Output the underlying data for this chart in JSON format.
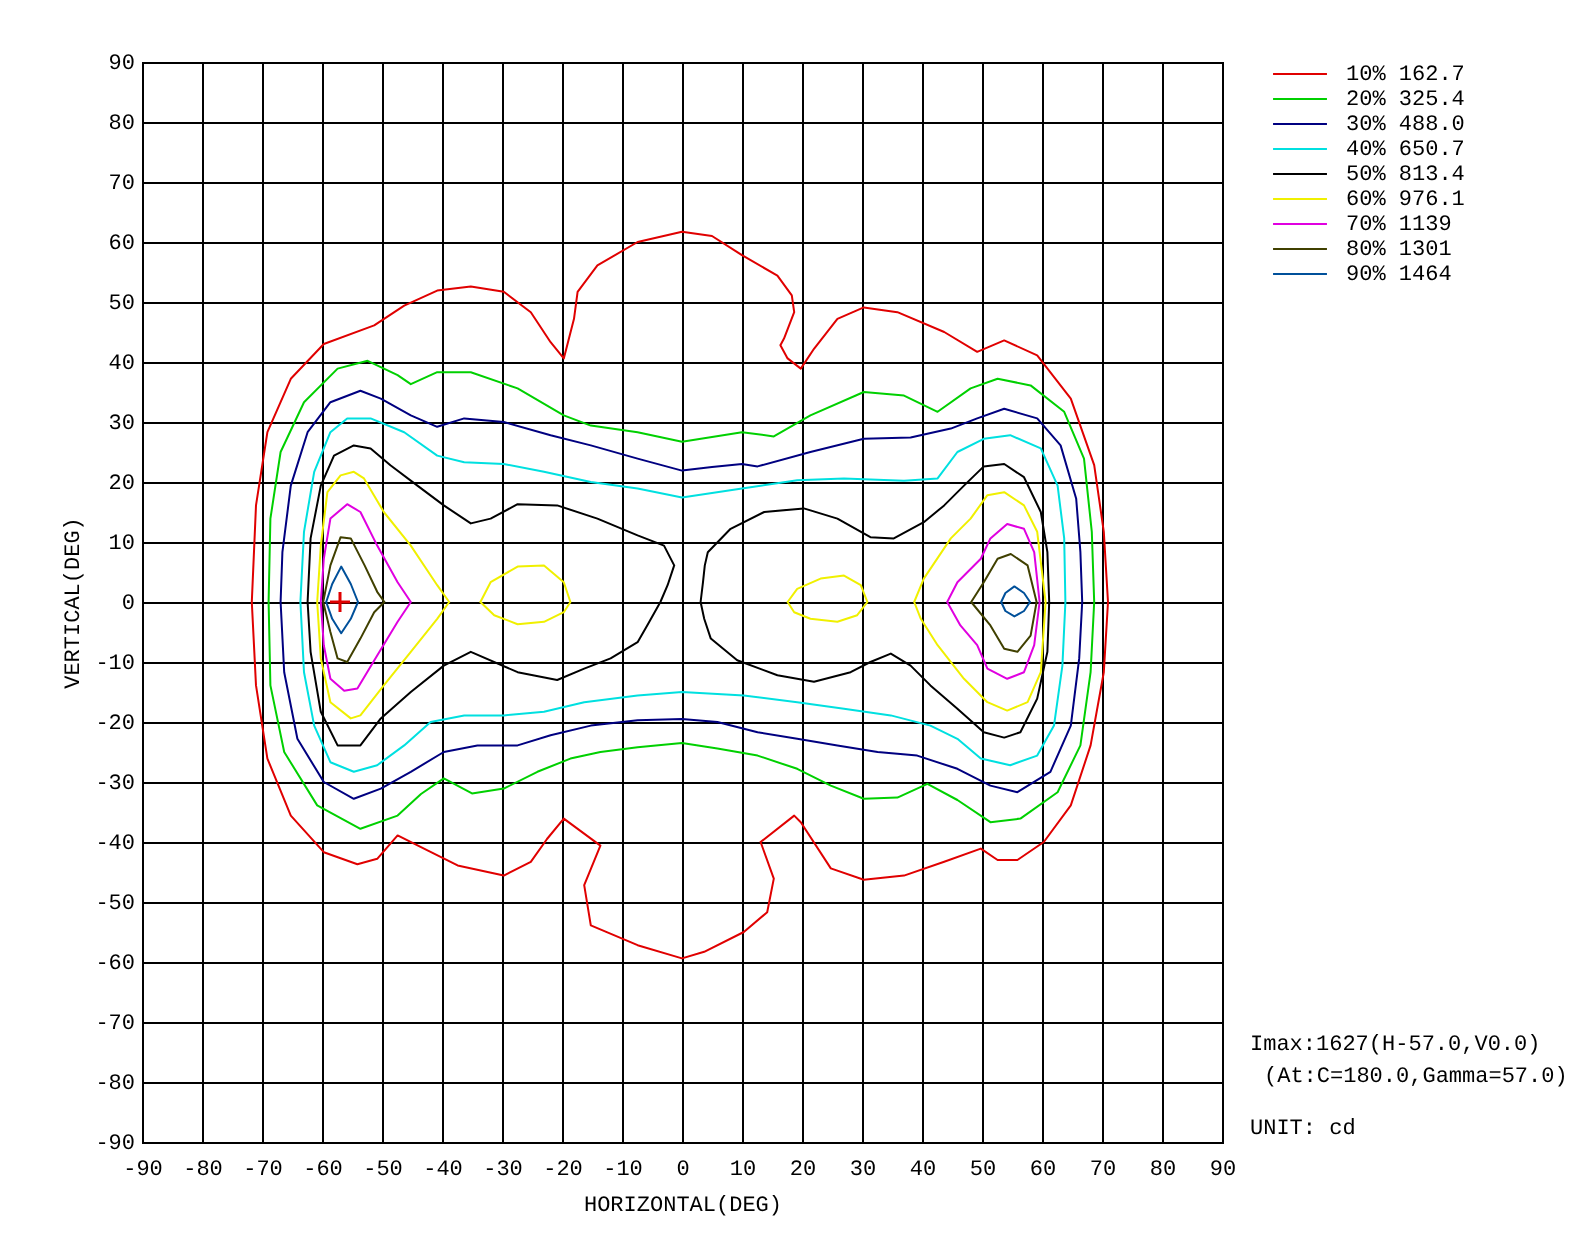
{
  "chart_data": {
    "type": "line",
    "xlabel": "HORIZONTAL(DEG)",
    "ylabel": "VERTICAL(DEG)",
    "xlim": [
      -90,
      90
    ],
    "ylim": [
      -90,
      90
    ],
    "xticks": [
      -90,
      -80,
      -70,
      -60,
      -50,
      -40,
      -30,
      -20,
      -10,
      0,
      10,
      20,
      30,
      40,
      50,
      60,
      70,
      80,
      90
    ],
    "yticks": [
      -90,
      -80,
      -70,
      -60,
      -50,
      -40,
      -30,
      -20,
      -10,
      0,
      10,
      20,
      30,
      40,
      50,
      60,
      70,
      80,
      90
    ],
    "grid": true,
    "legend": "top right",
    "annotations": [
      "Imax:1627(H-57.0,V0.0)",
      "(At:C=180.0,Gamma=57.0)",
      "UNIT: cd"
    ],
    "series": [
      {
        "name": "10% 162.7",
        "color": "#e00000",
        "x": [
          -71.7,
          -71,
          -69.1,
          -65.2,
          -59.7,
          -51.3,
          -46.3,
          -40.8,
          -35.2,
          -29.7,
          -25.2,
          -21.9,
          -19.7,
          -18,
          -17.4,
          -14.1,
          -7.4,
          0,
          5,
          10,
          15.9,
          18.3,
          18.7,
          null,
          16.4,
          17,
          18.7,
          null,
          16.4,
          17.6,
          19.8,
          22,
          25.9,
          30.3,
          35.9,
          43.7,
          49.2,
          53.7,
          59.2,
          64.8,
          68.7,
          70.3,
          71,
          null,
          -71.7,
          -71,
          -69.1,
          -65.2,
          -59.7,
          -54.1,
          -50.8,
          -47.4,
          -43,
          -37.4,
          -29.7,
          -25.2,
          -22.5,
          -19.7,
          -13.6,
          null,
          -16.3,
          -13.6,
          null,
          -16.3,
          -15.2,
          -7.4,
          0,
          3.7,
          10.3,
          14.2,
          15.3,
          null,
          13.1,
          15.3,
          null,
          13.1,
          18.7,
          19.8,
          24.8,
          30.3,
          37,
          43.7,
          49.8,
          52.6,
          55.9,
          60.3,
          64.8,
          68.1,
          70.3,
          71
        ],
        "values": [
          0,
          16.1,
          28.3,
          37.2,
          43,
          46.1,
          49.4,
          51.9,
          52.6,
          51.7,
          48.3,
          43.3,
          40.6,
          47.2,
          51.7,
          56.1,
          60,
          61.7,
          61,
          57.8,
          54.4,
          51.1,
          48.3,
          null,
          42.8,
          43.9,
          48.3,
          null,
          42.8,
          40.6,
          38.9,
          42.2,
          47.2,
          49.1,
          48.3,
          45,
          41.7,
          43.6,
          41.1,
          33.9,
          22.8,
          11.7,
          0,
          null,
          0,
          -13.9,
          -26.1,
          -35.6,
          -41.7,
          -43.7,
          -42.8,
          -38.9,
          -41.1,
          -43.9,
          -45.6,
          -43.3,
          -39.5,
          -36.1,
          -40.6,
          null,
          -47.2,
          -40.6,
          null,
          -47.2,
          -53.9,
          -57.2,
          -59.4,
          -58.3,
          -55,
          -51.7,
          -46.1,
          null,
          -40,
          -46.1,
          null,
          -40,
          -35.6,
          -36.7,
          -44.4,
          -46.3,
          -45.6,
          -43.3,
          -41.1,
          -43,
          -43,
          -40,
          -33.9,
          -23.9,
          -11.7,
          0
        ]
      },
      {
        "name": "20% 325.4",
        "color": "#00d000",
        "x": [
          -68.9,
          -68.6,
          -66.9,
          -63,
          -57.4,
          -52.4,
          -47.4,
          -45.2,
          -40.8,
          -35.2,
          -27.4,
          -19.7,
          -15.2,
          -7.4,
          0,
          5,
          10,
          15.3,
          21.4,
          30.3,
          37,
          42.6,
          48.1,
          52.6,
          58.1,
          63.7,
          67,
          68.3,
          68.7,
          null,
          -68.9,
          -68.6,
          -66.3,
          -60.8,
          -53.6,
          -47.4,
          -43.5,
          -39.7,
          -35,
          -29.7,
          -24.1,
          -18.6,
          -13.6,
          -7.4,
          0,
          5.9,
          12.6,
          19.2,
          24.8,
          30.3,
          35.9,
          40.9,
          45.9,
          51.4,
          56.4,
          62.6,
          66.4,
          68.1,
          68.7
        ],
        "values": [
          0,
          13.9,
          25,
          33.3,
          38.9,
          40.2,
          37.8,
          36.3,
          38.3,
          38.3,
          35.6,
          31.1,
          29.4,
          28.3,
          26.7,
          27.5,
          28.3,
          27.6,
          31.1,
          35,
          34.4,
          31.7,
          35.6,
          37.2,
          36.1,
          31.7,
          23.9,
          11.7,
          0,
          null,
          0,
          -13.9,
          -25,
          -33.9,
          -37.8,
          -35.6,
          -32,
          -29.4,
          -31.9,
          -31.1,
          -28.3,
          -26.1,
          -25,
          -24.2,
          -23.5,
          -24.4,
          -25.6,
          -27.8,
          -30.6,
          -32.8,
          -32.6,
          -30.3,
          -33,
          -36.7,
          -36.1,
          -31.7,
          -23.9,
          -11.7,
          0
        ]
      },
      {
        "name": "30% 488.0",
        "color": "#000080",
        "x": [
          -66.9,
          -66.6,
          -65.2,
          -62.4,
          -58.6,
          -53.6,
          -50.2,
          -45.2,
          -40.8,
          -36.3,
          -29.7,
          -21.9,
          -15.2,
          -7.4,
          0,
          5,
          10,
          12.6,
          21.4,
          30.3,
          38.1,
          44.8,
          49.2,
          53.7,
          59.2,
          63.1,
          65.7,
          66.4,
          66.7,
          null,
          -66.9,
          -66.3,
          -64.1,
          -59.7,
          -54.7,
          -50.2,
          -45.2,
          -39.7,
          -34.1,
          -27.4,
          -21.9,
          -15.2,
          -7.4,
          0,
          5.9,
          12.6,
          19.2,
          25.9,
          32.6,
          39.2,
          45.9,
          51.4,
          55.9,
          61.4,
          64.8,
          66.2,
          66.7
        ],
        "values": [
          0,
          8.3,
          19.4,
          28.3,
          33.3,
          35.2,
          33.9,
          31.1,
          29.2,
          30.6,
          30,
          27.8,
          26.1,
          23.9,
          21.9,
          22.5,
          23,
          22.6,
          25,
          27.2,
          27.4,
          28.9,
          30.6,
          32.2,
          30.6,
          26.1,
          17.2,
          8.3,
          0,
          null,
          0,
          -11.7,
          -22.8,
          -30,
          -32.8,
          -31.1,
          -28.3,
          -25,
          -23.9,
          -23.9,
          -22.2,
          -20.6,
          -19.7,
          -19.5,
          -20,
          -21.7,
          -22.8,
          -23.9,
          -25,
          -25.6,
          -27.8,
          -30.6,
          -31.7,
          -28.3,
          -20.6,
          -9.4,
          0
        ]
      },
      {
        "name": "40% 650.7",
        "color": "#00e0e0",
        "x": [
          -63.6,
          -63,
          -61.3,
          -58.6,
          -55.8,
          -51.9,
          -46.3,
          -40.8,
          -36.3,
          -29.7,
          -23,
          -15.2,
          -7.4,
          0,
          10,
          19.2,
          27,
          37,
          42.6,
          45.9,
          50.3,
          54.7,
          59.8,
          62.6,
          63.7,
          63.9,
          null,
          -63.6,
          -63,
          -61.3,
          -58.6,
          -54.7,
          -50.8,
          -46.3,
          -41.9,
          -36.3,
          -29.7,
          -23,
          -16.3,
          -7.4,
          0,
          10.3,
          19.2,
          27,
          34.8,
          41.4,
          45.9,
          49.8,
          54.7,
          59.2,
          62,
          63.4,
          63.9
        ],
        "values": [
          0,
          11.7,
          21.7,
          28.3,
          30.6,
          30.6,
          28.3,
          24.4,
          23.3,
          23,
          21.7,
          20,
          18.9,
          17.4,
          18.9,
          20.3,
          20.6,
          20.2,
          20.6,
          25,
          27.2,
          27.8,
          25.6,
          19.4,
          10.6,
          0,
          null,
          0,
          -11.7,
          -20.6,
          -26.7,
          -28.3,
          -27.2,
          -23.9,
          -20,
          -18.9,
          -18.9,
          -18.3,
          -16.7,
          -15.6,
          -15,
          -15.6,
          -16.7,
          -17.8,
          -18.9,
          -20.6,
          -22.8,
          -26.1,
          -27.2,
          -25.6,
          -20.6,
          -10.6,
          0
        ]
      },
      {
        "name": "50% 813.4",
        "color": "#000000",
        "x": [
          -62.4,
          -61.9,
          -60.2,
          -58,
          -54.7,
          -51.9,
          -48.6,
          -44.1,
          -39.7,
          -35.2,
          -31.9,
          -27.4,
          -20.8,
          -14.1,
          -7.4,
          -3,
          -1.3,
          null,
          3.1,
          3.5,
          3.8,
          4.3,
          8.1,
          13.7,
          20.3,
          25.9,
          31.4,
          35.3,
          40.3,
          43.7,
          47,
          50.3,
          53.7,
          57,
          59.8,
          60.9,
          61.2,
          null,
          -62.4,
          -61.9,
          -60.2,
          -57.4,
          -53.6,
          -50.2,
          -45.2,
          -39.7,
          -35.2,
          -27.4,
          -20.8,
          -16.3,
          -11.9,
          -7.4,
          -5.8,
          -3.6,
          -2.4,
          -1.3,
          null,
          3.1,
          3.7,
          4.8,
          9.2,
          15.9,
          22,
          28.1,
          31.4,
          34.8,
          38.1,
          41.4,
          45.9,
          50.3,
          53.7,
          56.4,
          59.2,
          60.9,
          61.2
        ],
        "values": [
          0,
          10.6,
          19.4,
          24.4,
          26.1,
          25.6,
          22.8,
          19.4,
          16.1,
          13.1,
          13.9,
          16.3,
          16.1,
          13.9,
          11.1,
          9.4,
          6.1,
          null,
          0,
          3.3,
          6.1,
          8.3,
          12.2,
          15,
          15.6,
          13.9,
          10.8,
          10.6,
          13.3,
          16.1,
          19.4,
          22.6,
          23,
          20.8,
          15,
          8.3,
          0,
          null,
          0,
          -8.3,
          -18.3,
          -23.9,
          -23.9,
          -19.4,
          -15,
          -10.6,
          -8.3,
          -11.7,
          -13,
          -11.1,
          -9.4,
          -6.7,
          -3.9,
          0,
          2.8,
          6.1,
          null,
          0,
          -2.8,
          -6.1,
          -9.7,
          -12.2,
          -13.3,
          -11.7,
          -10,
          -8.6,
          -10.6,
          -13.9,
          -17.8,
          -21.7,
          -22.6,
          -21.7,
          -16.1,
          -8.3,
          0
        ]
      },
      {
        "name": "60% 976.1",
        "color": "#f0f000",
        "x": [
          -60.8,
          -60.2,
          -59.1,
          -56.9,
          -54.7,
          -53,
          -49.7,
          -45.2,
          -40.8,
          -38.8,
          null,
          -33.6,
          -31.9,
          -27.4,
          -23,
          -19.7,
          -18.6,
          null,
          17.6,
          19.2,
          23.1,
          27,
          29.8,
          30.9,
          null,
          38.7,
          40.3,
          44.8,
          48.1,
          50.9,
          53.7,
          57,
          59.2,
          60.6,
          null,
          -60.8,
          -60.2,
          -58.6,
          -55.2,
          -53.6,
          -49.7,
          -45.2,
          -40.8,
          -38.8,
          null,
          -33.6,
          -31.3,
          -27.4,
          -23,
          -19.7,
          -18.6,
          null,
          17.6,
          18.7,
          21.4,
          25.9,
          29.2,
          30.9,
          null,
          38.7,
          39.8,
          42.6,
          47,
          50.9,
          54.2,
          57.6,
          59.8,
          60.6
        ],
        "values": [
          0,
          9.4,
          18.3,
          21.1,
          21.7,
          20.6,
          15,
          9.4,
          2.8,
          0,
          null,
          0,
          3.3,
          5.9,
          6.1,
          3.3,
          0,
          null,
          0,
          2.2,
          3.9,
          4.4,
          2.8,
          0,
          null,
          0,
          3.9,
          10.6,
          13.9,
          17.8,
          18.3,
          16.1,
          11.7,
          0,
          null,
          0,
          -9.4,
          -16.7,
          -19.4,
          -18.9,
          -13.9,
          -8.3,
          -2.8,
          0,
          null,
          0,
          -2.2,
          -3.7,
          -3.3,
          -1.7,
          0,
          null,
          0,
          -1.7,
          -2.8,
          -3.3,
          -2.2,
          0,
          null,
          0,
          -2.8,
          -7.2,
          -12.8,
          -16.7,
          -18.1,
          -16.7,
          -11.7,
          0
        ]
      },
      {
        "name": "70% 1139",
        "color": "#e000e0",
        "x": [
          -60.2,
          -59.7,
          -58.6,
          -55.8,
          -53.6,
          -50.8,
          -47.4,
          -45.2,
          null,
          44.2,
          45.9,
          49.8,
          51.4,
          54.2,
          57,
          58.7,
          59.6,
          null,
          -60.2,
          -59.7,
          -58.6,
          -56.3,
          -54.1,
          -50.8,
          -47.4,
          -45.2,
          null,
          44.2,
          46.4,
          49.2,
          50.9,
          54.2,
          57,
          58.7,
          59.6
        ],
        "values": [
          0,
          7.2,
          13.9,
          16.3,
          15,
          9.4,
          3.3,
          0,
          null,
          0,
          3.3,
          7.2,
          10.6,
          13,
          12.2,
          8.3,
          0,
          null,
          0,
          -7.2,
          -12.8,
          -14.8,
          -14.4,
          -8.9,
          -3.3,
          0,
          null,
          0,
          -3.9,
          -7.2,
          -11.1,
          -12.8,
          -11.7,
          -7.2,
          0
        ]
      },
      {
        "name": "80% 1301",
        "color": "#404000",
        "x": [
          -59.8,
          -58.6,
          -56.9,
          -55.2,
          -52.9,
          -50.8,
          -49.6,
          null,
          48.2,
          50.3,
          52.6,
          54.8,
          57.6,
          59.1,
          null,
          -59.8,
          -58.6,
          -57.4,
          -55.8,
          -53.6,
          -51.3,
          -49.6,
          null,
          48.2,
          51.4,
          53.7,
          55.9,
          58.1,
          59.1
        ],
        "values": [
          0,
          6.1,
          10.8,
          10.6,
          6.1,
          1.7,
          0,
          null,
          0,
          3.3,
          7.2,
          8,
          6.1,
          0,
          null,
          0,
          -5,
          -9.4,
          -10,
          -6.1,
          -1.7,
          0,
          null,
          0,
          -3.9,
          -7.8,
          -8.3,
          -5.6,
          0
        ]
      },
      {
        "name": "90% 1464",
        "color": "#00509a",
        "x": [
          -59.3,
          -58.3,
          -56.8,
          -55.2,
          -54,
          null,
          53.2,
          53.9,
          55.4,
          57,
          58,
          null,
          -59.3,
          -58.3,
          -56.8,
          -55.2,
          -54,
          null,
          53.2,
          53.9,
          55.4,
          57,
          58
        ],
        "values": [
          0,
          3,
          5.9,
          3,
          0,
          null,
          0,
          1.5,
          2.6,
          1.5,
          0,
          null,
          0,
          -2.8,
          -5.2,
          -2.8,
          0,
          null,
          0,
          -1.5,
          -2.4,
          -1.5,
          0
        ]
      },
      {
        "type": "scatter",
        "color": "#e00000",
        "marker": "cross",
        "x": [
          -57
        ],
        "values": [
          0
        ]
      }
    ]
  }
}
